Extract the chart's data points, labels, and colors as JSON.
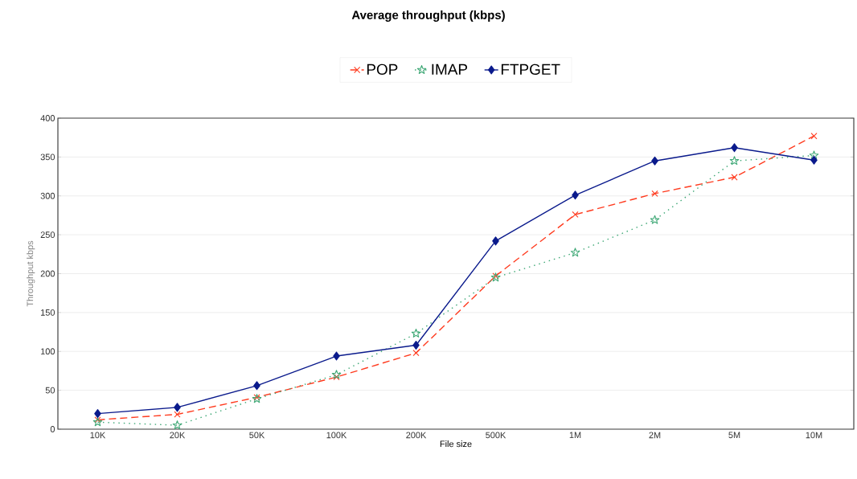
{
  "chart_data": {
    "type": "line",
    "title": "Average throughput (kbps)",
    "xlabel": "File size",
    "ylabel": "Throughput kbps",
    "categories": [
      "10K",
      "20K",
      "50K",
      "100K",
      "200K",
      "500K",
      "1M",
      "2M",
      "5M",
      "10M"
    ],
    "series": [
      {
        "name": "POP",
        "color": "#ff3b1f",
        "marker": "cross",
        "line_style": "dashed",
        "values": [
          12,
          19,
          41,
          67,
          98,
          197,
          276,
          303,
          324,
          377
        ]
      },
      {
        "name": "IMAP",
        "color": "#3fa876",
        "marker": "star",
        "line_style": "dotted",
        "values": [
          9,
          5,
          39,
          70,
          123,
          195,
          227,
          269,
          345,
          352
        ]
      },
      {
        "name": "FTPGET",
        "color": "#0a1a8c",
        "marker": "diamond",
        "line_style": "solid",
        "values": [
          20,
          28,
          56,
          94,
          108,
          242,
          301,
          345,
          362,
          346
        ]
      }
    ],
    "ylim": [
      0,
      400
    ],
    "yticks": [
      0,
      50,
      100,
      150,
      200,
      250,
      300,
      350,
      400
    ],
    "grid": "y",
    "legend": "top"
  }
}
